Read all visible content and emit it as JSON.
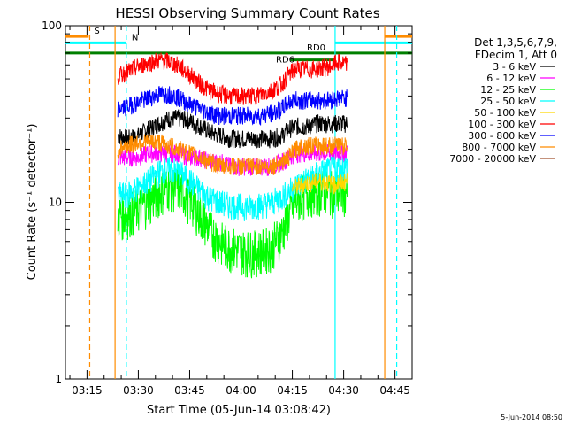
{
  "chart_data": {
    "type": "line",
    "title": "HESSI Observing Summary Count Rates",
    "xlabel": "Start Time (05-Jun-14 03:08:42)",
    "ylabel": "Count Rate (s⁻¹ detector⁻¹)",
    "y_scale": "log",
    "ylim": [
      1,
      100
    ],
    "y_ticks": [
      "1",
      "10",
      "100"
    ],
    "x_ticks": [
      "03:15",
      "03:30",
      "03:45",
      "04:00",
      "04:15",
      "04:30",
      "04:45"
    ],
    "x_tick_minutes": [
      15,
      30,
      45,
      60,
      75,
      90,
      105
    ],
    "xlim_minutes": [
      8.7,
      110
    ],
    "legend_header": [
      "Det 1,3,5,6,7,9,",
      "FDecim 1, Att 0"
    ],
    "legend_position": "right",
    "series": [
      {
        "name": "3 - 6 keV",
        "color": "#000000",
        "x": [
          24,
          27,
          30,
          33,
          36,
          39,
          42,
          45,
          48,
          51,
          54,
          57,
          60,
          63,
          66,
          69,
          72,
          74,
          76,
          78,
          80,
          82,
          84,
          86,
          88,
          90,
          91
        ],
        "y": [
          24,
          23,
          24,
          26,
          28,
          30,
          30,
          29,
          27,
          25,
          24,
          23,
          23,
          23,
          23,
          23,
          24,
          26,
          27,
          27,
          27,
          28,
          28,
          28,
          28,
          28,
          28
        ]
      },
      {
        "name": "6 - 12 keV",
        "color": "#ff00ff",
        "x": [
          24,
          27,
          30,
          33,
          36,
          39,
          42,
          45,
          48,
          51,
          54,
          57,
          60,
          63,
          66,
          69,
          72,
          74,
          76,
          78,
          80,
          82,
          84,
          86,
          88,
          90,
          91
        ],
        "y": [
          18,
          18,
          18,
          19,
          19,
          19,
          19,
          18,
          18,
          17,
          17,
          16,
          16,
          16,
          16,
          16,
          17,
          18,
          19,
          19,
          19,
          19,
          19,
          19,
          19,
          19,
          19
        ]
      },
      {
        "name": "12 - 25 keV",
        "color": "#00ff00",
        "x": [
          24,
          27,
          30,
          33,
          36,
          39,
          42,
          45,
          48,
          51,
          54,
          57,
          60,
          63,
          66,
          69,
          72,
          74,
          76,
          78,
          80,
          82,
          84,
          86,
          88,
          90,
          91
        ],
        "y": [
          8.5,
          8.7,
          9.3,
          10.2,
          11.4,
          12.5,
          12.1,
          10.5,
          8.6,
          7.0,
          6.0,
          5.6,
          5.4,
          5.3,
          5.4,
          5.7,
          6.8,
          8.6,
          10.2,
          11.0,
          11.5,
          11.7,
          11.8,
          11.6,
          11.4,
          11.6,
          12.0
        ]
      },
      {
        "name": "25 - 50 keV",
        "color": "#00ffff",
        "x": [
          24,
          27,
          30,
          33,
          36,
          39,
          42,
          45,
          48,
          51,
          54,
          57,
          60,
          63,
          66,
          69,
          72,
          74,
          76,
          78,
          80,
          82,
          84,
          86,
          88,
          90,
          91
        ],
        "y": [
          11.0,
          11.2,
          12.2,
          13.3,
          14.8,
          15.4,
          14.8,
          13.3,
          11.7,
          10.6,
          10.0,
          9.6,
          9.5,
          9.5,
          9.7,
          10.0,
          10.8,
          11.6,
          12.4,
          13.2,
          13.8,
          14.4,
          15.0,
          15.3,
          15.6,
          15.8,
          16.0
        ]
      },
      {
        "name": "50 - 100 keV",
        "color": "#ffd800",
        "x": [
          75,
          77,
          79,
          81,
          83,
          85,
          87,
          89,
          91
        ],
        "y": [
          12.0,
          12.4,
          12.8,
          13.0,
          13.2,
          13.0,
          12.6,
          12.8,
          13.2
        ]
      },
      {
        "name": "100 - 300 keV",
        "color": "#ff0000",
        "x": [
          24,
          27,
          30,
          33,
          36,
          39,
          42,
          45,
          48,
          51,
          54,
          57,
          60,
          63,
          66,
          69,
          72,
          74,
          76,
          78,
          80,
          82,
          84,
          86,
          88,
          90,
          91
        ],
        "y": [
          52,
          55,
          59,
          62,
          64,
          63,
          59,
          53,
          47,
          43,
          41,
          40,
          40,
          40,
          41,
          43,
          47,
          53,
          57,
          57,
          57,
          57,
          58,
          59,
          62,
          61,
          60
        ]
      },
      {
        "name": "300 - 800 keV",
        "color": "#0000ff",
        "x": [
          24,
          27,
          30,
          33,
          36,
          39,
          42,
          45,
          48,
          51,
          54,
          57,
          60,
          63,
          66,
          69,
          72,
          74,
          76,
          78,
          80,
          82,
          84,
          86,
          88,
          90,
          91
        ],
        "y": [
          34,
          35,
          37,
          39,
          41,
          41,
          39,
          36,
          34,
          32,
          31,
          31,
          31,
          31,
          31,
          32,
          34,
          37,
          38,
          38,
          38,
          38,
          38,
          38,
          39,
          39,
          39
        ]
      },
      {
        "name": "800 - 7000 keV",
        "color": "#ff8c00",
        "x": [
          24,
          27,
          30,
          33,
          36,
          39,
          42,
          45,
          48,
          51,
          54,
          57,
          60,
          63,
          66,
          69,
          72,
          74,
          76,
          78,
          80,
          82,
          84,
          86,
          88,
          90,
          91
        ],
        "y": [
          20,
          21,
          22,
          22,
          22,
          21,
          20,
          19,
          18,
          17,
          16,
          16,
          16,
          16,
          16,
          16,
          17,
          18,
          20,
          21,
          21,
          21,
          21,
          21,
          21,
          21,
          21
        ]
      },
      {
        "name": "7000 - 20000 keV",
        "color": "#a0522d",
        "x": [],
        "y": []
      }
    ],
    "markers": [
      {
        "label": "S",
        "color": "#ff8c00",
        "y": 87,
        "segments": [
          [
            8.7,
            15.5
          ],
          [
            102,
            110
          ]
        ]
      },
      {
        "label": "N",
        "color": "#00ffff",
        "y": 80,
        "segments": [
          [
            8.7,
            26.5
          ],
          [
            87.5,
            110
          ]
        ]
      },
      {
        "label": "RD0",
        "color": "#008000",
        "y": 70,
        "segments": [
          [
            8.7,
            110
          ]
        ]
      },
      {
        "label": "RD6",
        "color": "#008000",
        "y": 64,
        "segments": [
          [
            74.5,
            87
          ]
        ]
      }
    ],
    "verticals": [
      {
        "x": 15.8,
        "color": "#ff8c00",
        "dashed": true
      },
      {
        "x": 26.5,
        "color": "#00ffff",
        "dashed": true
      },
      {
        "x": 87.5,
        "color": "#00ffff",
        "dashed": false
      },
      {
        "x": 102.0,
        "color": "#ff8c00",
        "dashed": false
      },
      {
        "x": 105.5,
        "color": "#00ffff",
        "dashed": true
      },
      {
        "x": 23.2,
        "color": "#ff8c00",
        "dashed": false
      }
    ]
  },
  "footer": {
    "date": "5-Jun-2014 08:50"
  }
}
